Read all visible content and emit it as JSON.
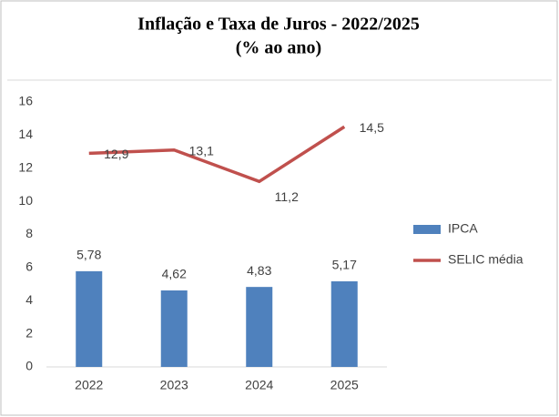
{
  "chart_data": {
    "type": "combo",
    "title": "Inflação e Taxa de Juros - 2022/2025",
    "subtitle": "(% ao ano)",
    "categories": [
      "2022",
      "2023",
      "2024",
      "2025"
    ],
    "series": [
      {
        "name": "IPCA",
        "type": "bar",
        "color": "#4f81bd",
        "values": [
          5.78,
          4.62,
          4.83,
          5.17
        ],
        "value_labels": [
          "5,78",
          "4,62",
          "4,83",
          "5,17"
        ]
      },
      {
        "name": "SELIC média",
        "type": "line",
        "color": "#c0504d",
        "values": [
          12.9,
          13.1,
          11.2,
          14.5
        ],
        "value_labels": [
          "12,9",
          "13,1",
          "11,2",
          "14,5"
        ]
      }
    ],
    "ylim": [
      0,
      16
    ],
    "yticks": [
      0,
      2,
      4,
      6,
      8,
      10,
      12,
      14,
      16
    ],
    "legend": "right"
  }
}
